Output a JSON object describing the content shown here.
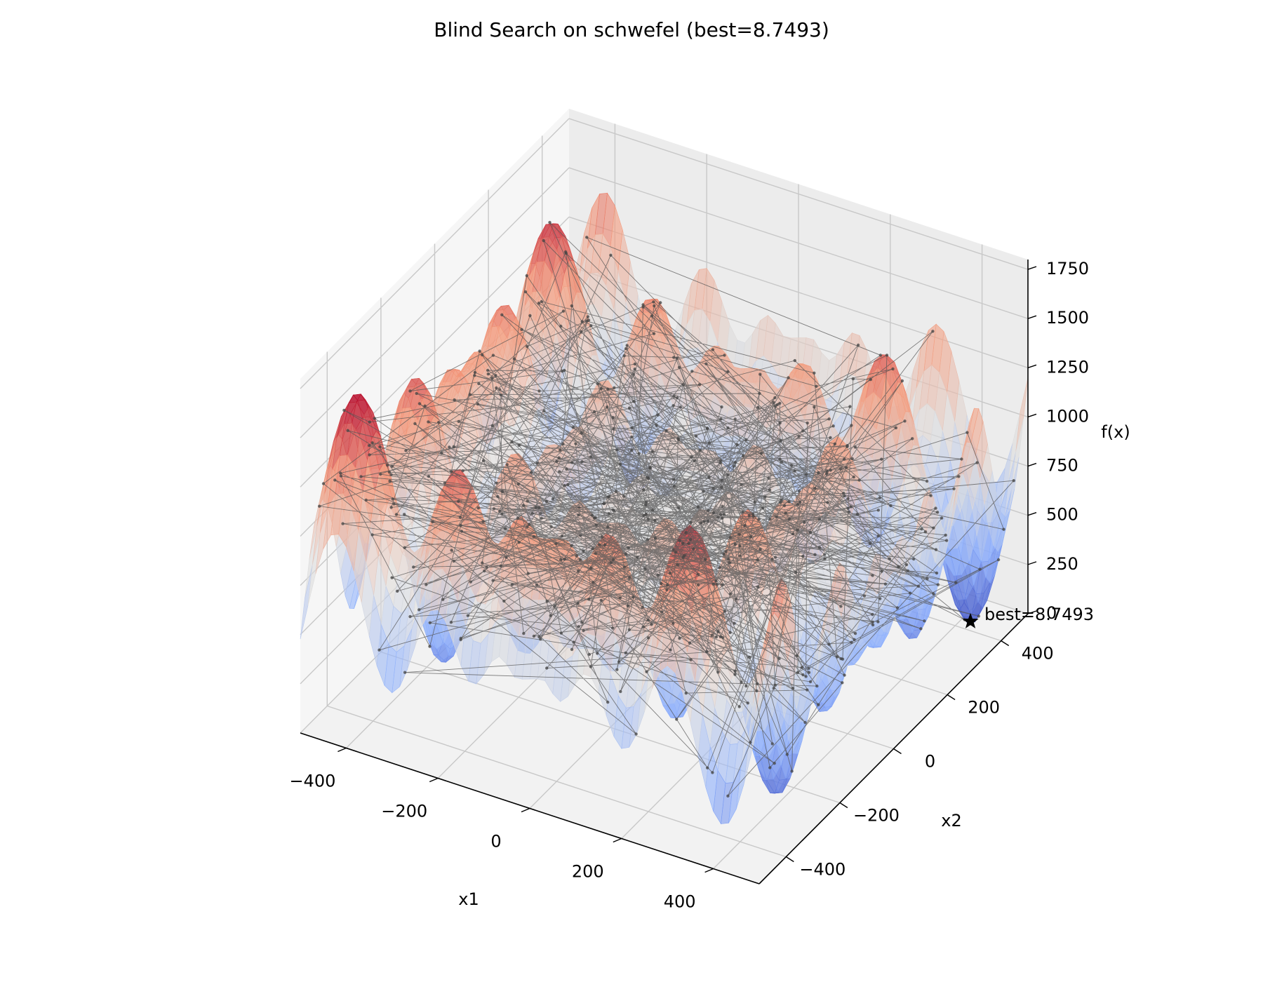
{
  "chart_data": {
    "type": "surface3d",
    "title": "Blind Search on schwefel (best=8.7493)",
    "xlabel": "x1",
    "ylabel": "x2",
    "zlabel": "f(x)",
    "xlim": [
      -500,
      500
    ],
    "ylim": [
      -500,
      500
    ],
    "zlim": [
      0,
      1800
    ],
    "xticks": [
      -400,
      -200,
      0,
      200,
      400
    ],
    "yticks": [
      -400,
      -200,
      0,
      200,
      400
    ],
    "zticks": [
      0,
      250,
      500,
      750,
      1000,
      1250,
      1500,
      1750
    ],
    "tick_labels": {
      "x": [
        "−400",
        "−200",
        "0",
        "200",
        "400"
      ],
      "y": [
        "−400",
        "−200",
        "0",
        "200",
        "400"
      ],
      "z": [
        "0",
        "250",
        "500",
        "750",
        "1000",
        "1250",
        "1500",
        "1750"
      ]
    },
    "surface": {
      "function": "schwefel",
      "colormap": "coolwarm"
    },
    "search_trace": {
      "method": "blind search",
      "color": "#555555"
    },
    "best_point": {
      "x1": 420.97,
      "x2": 420.97,
      "f": 8.7493,
      "label": "best=8.7493"
    },
    "grid": true
  }
}
